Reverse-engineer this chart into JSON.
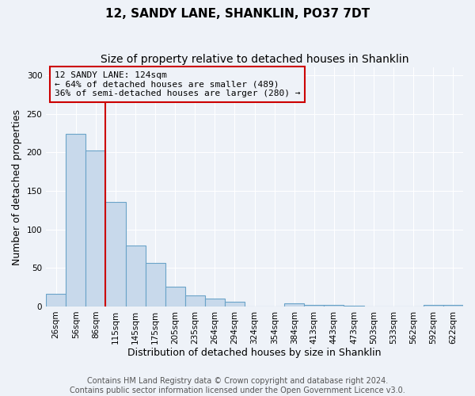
{
  "title": "12, SANDY LANE, SHANKLIN, PO37 7DT",
  "subtitle": "Size of property relative to detached houses in Shanklin",
  "xlabel": "Distribution of detached houses by size in Shanklin",
  "ylabel": "Number of detached properties",
  "bin_labels": [
    "26sqm",
    "56sqm",
    "86sqm",
    "115sqm",
    "145sqm",
    "175sqm",
    "205sqm",
    "235sqm",
    "264sqm",
    "294sqm",
    "324sqm",
    "354sqm",
    "384sqm",
    "413sqm",
    "443sqm",
    "473sqm",
    "503sqm",
    "533sqm",
    "562sqm",
    "592sqm",
    "622sqm"
  ],
  "bar_heights": [
    16,
    224,
    202,
    136,
    79,
    56,
    26,
    14,
    10,
    6,
    0,
    0,
    4,
    2,
    2,
    1,
    0,
    0,
    0,
    2,
    2
  ],
  "bar_color": "#c8d9eb",
  "bar_edge_color": "#6aa3c8",
  "ylim": [
    0,
    310
  ],
  "yticks": [
    0,
    50,
    100,
    150,
    200,
    250,
    300
  ],
  "property_label": "12 SANDY LANE: 124sqm",
  "annotation_line1": "← 64% of detached houses are smaller (489)",
  "annotation_line2": "36% of semi-detached houses are larger (280) →",
  "vline_color": "#cc0000",
  "vline_x": 2.5,
  "annotation_box_color": "#cc0000",
  "footnote1": "Contains HM Land Registry data © Crown copyright and database right 2024.",
  "footnote2": "Contains public sector information licensed under the Open Government Licence v3.0.",
  "background_color": "#eef2f8",
  "grid_color": "#ffffff",
  "title_fontsize": 11,
  "subtitle_fontsize": 10,
  "axis_label_fontsize": 9,
  "tick_fontsize": 7.5,
  "annotation_fontsize": 8,
  "footnote_fontsize": 7
}
